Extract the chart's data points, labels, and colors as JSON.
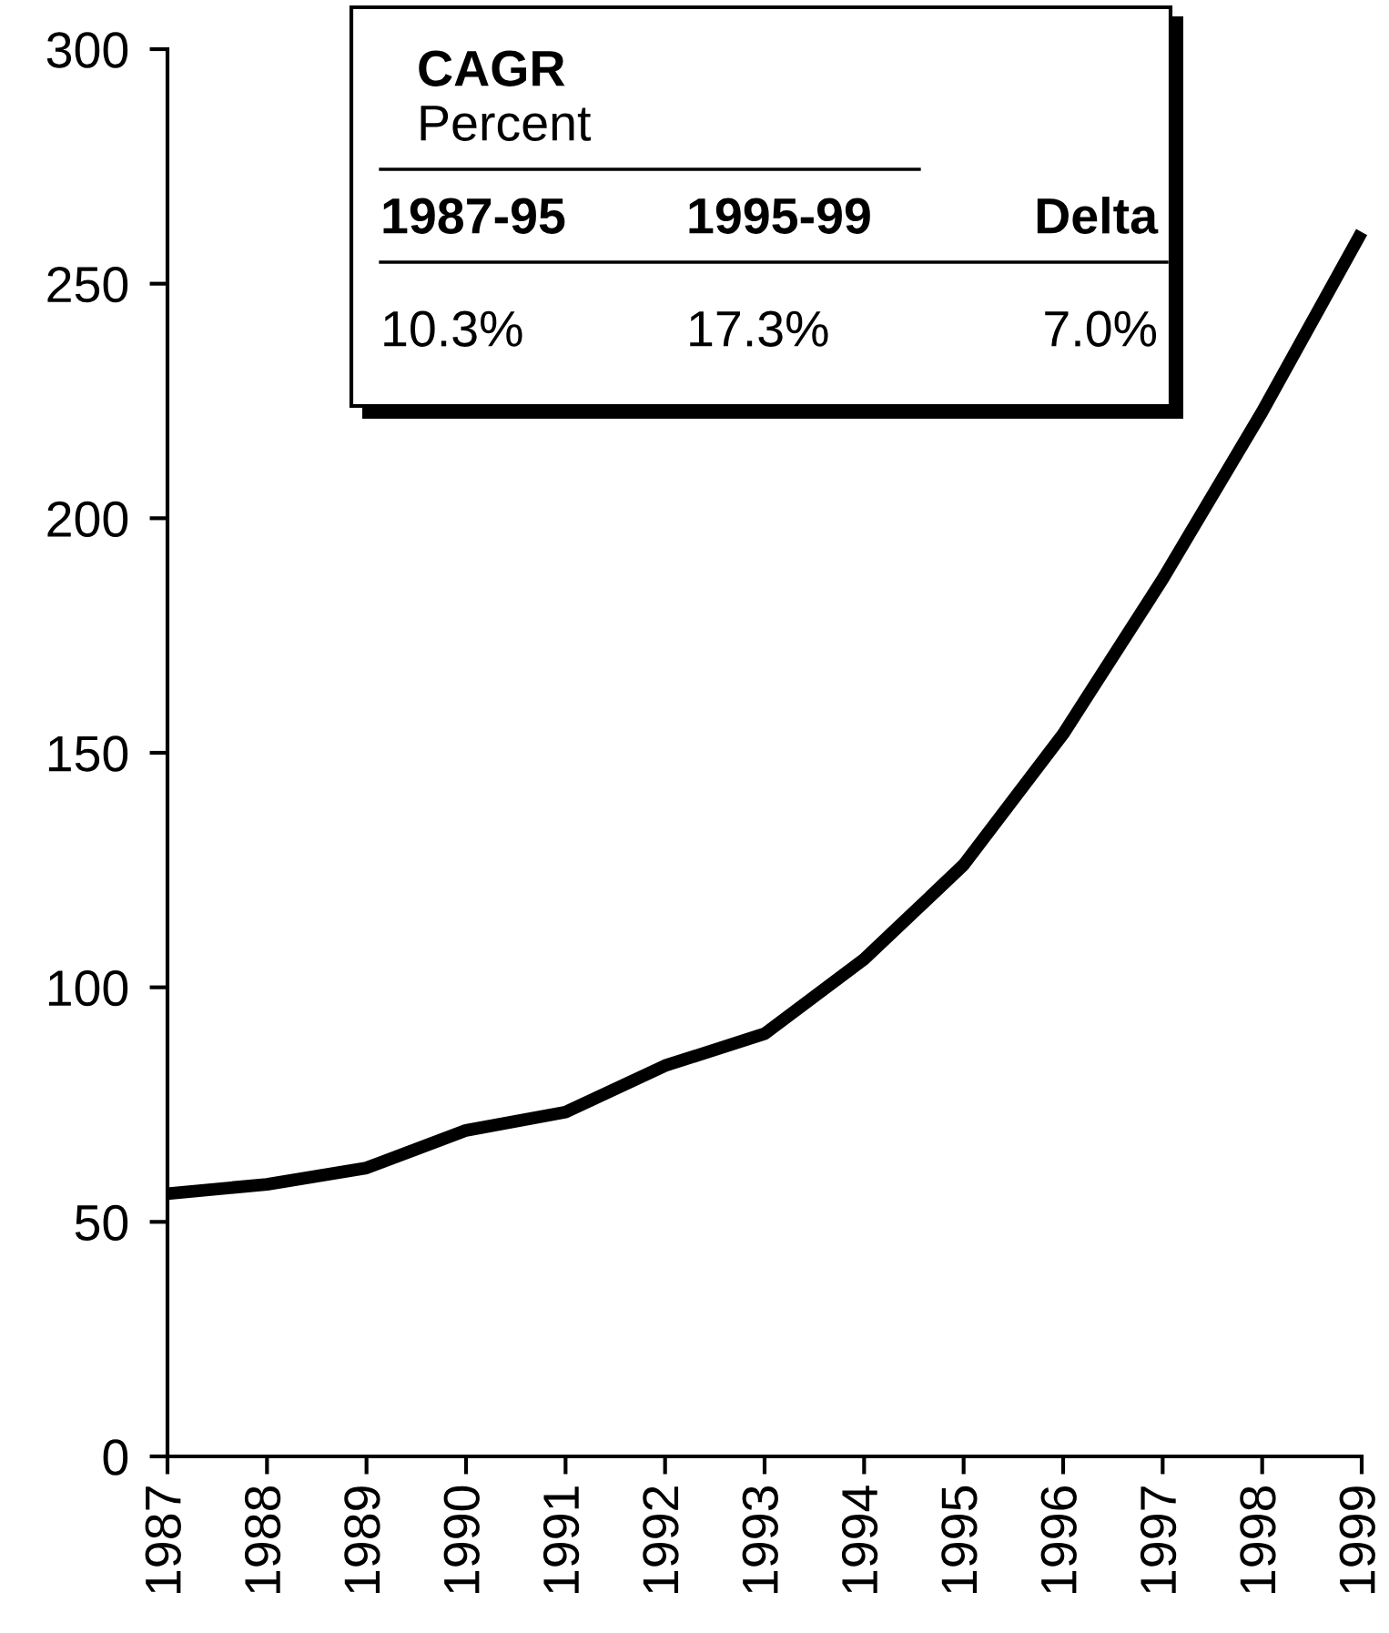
{
  "chart_data": {
    "type": "line",
    "x": [
      1987,
      1988,
      1989,
      1990,
      1991,
      1992,
      1993,
      1994,
      1995,
      1996,
      1997,
      1998,
      1999
    ],
    "series": [
      {
        "color": "#000000",
        "values": [
          56,
          58,
          61.5,
          69.5,
          73.4,
          83.3,
          90.1,
          106,
          126.1,
          154,
          187,
          222.7,
          261
        ]
      }
    ],
    "xlim": [
      1987,
      1999
    ],
    "xticks": [
      1987,
      1988,
      1989,
      1990,
      1991,
      1992,
      1993,
      1994,
      1995,
      1996,
      1997,
      1998,
      1999
    ],
    "ylim": [
      0,
      300
    ],
    "yticks": [
      0,
      50,
      100,
      150,
      200,
      250,
      300
    ],
    "grid": false,
    "marker": "none",
    "line_style": "solid",
    "annotations": [
      "CAGR",
      "Percent",
      "1987-95",
      "1995-99",
      "Delta",
      "10.3%",
      "17.3%",
      "7.0%"
    ]
  }
}
